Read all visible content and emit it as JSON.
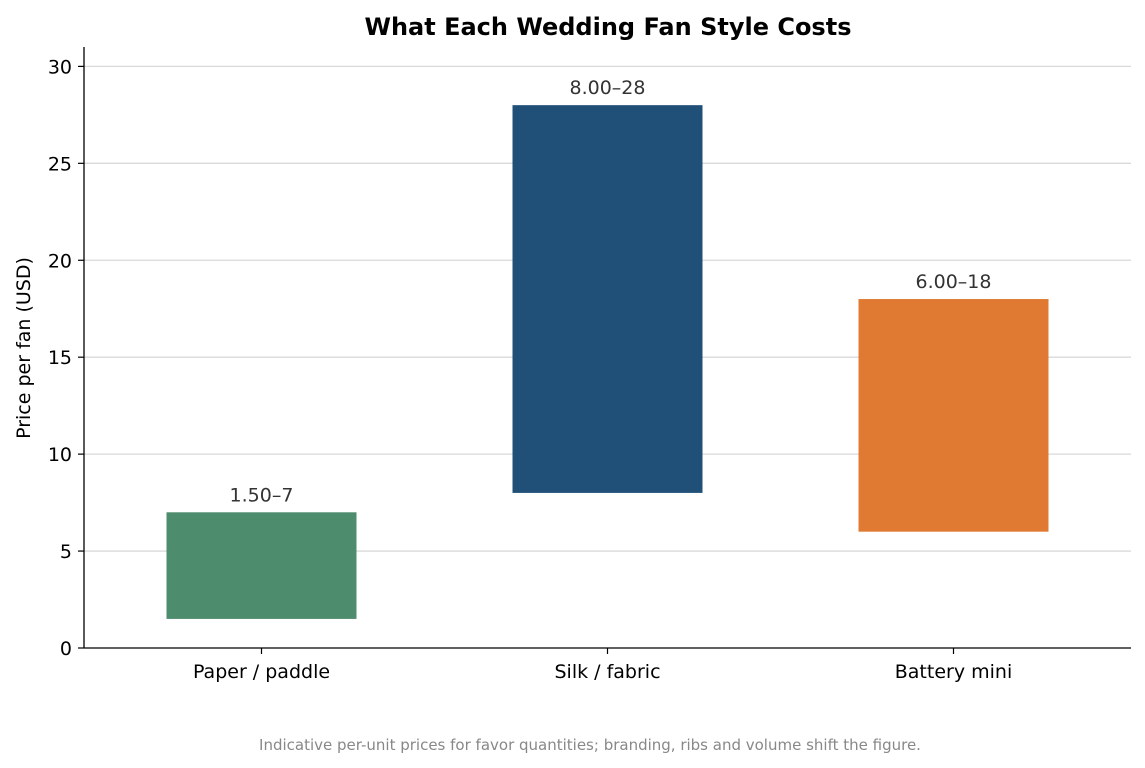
{
  "chart_data": {
    "type": "bar",
    "title": "What Each Wedding Fan Style Costs",
    "xlabel": "",
    "ylabel": "Price per fan (USD)",
    "ylim": [
      0,
      31
    ],
    "yticks": [
      0,
      5,
      10,
      15,
      20,
      25,
      30
    ],
    "grid": "horizontal",
    "categories": [
      "Paper / paddle",
      "Silk / fabric",
      "Battery mini"
    ],
    "ranges": [
      {
        "low": 1.5,
        "high": 7,
        "label": "1.50–7",
        "color": "#4e8c6e"
      },
      {
        "low": 8,
        "high": 28,
        "label": "8.00–28",
        "color": "#204f78"
      },
      {
        "low": 6,
        "high": 18,
        "label": "6.00–18",
        "color": "#e07a33"
      }
    ],
    "footnote": "Indicative per-unit prices for favor quantities; branding, ribs and volume shift the figure."
  }
}
